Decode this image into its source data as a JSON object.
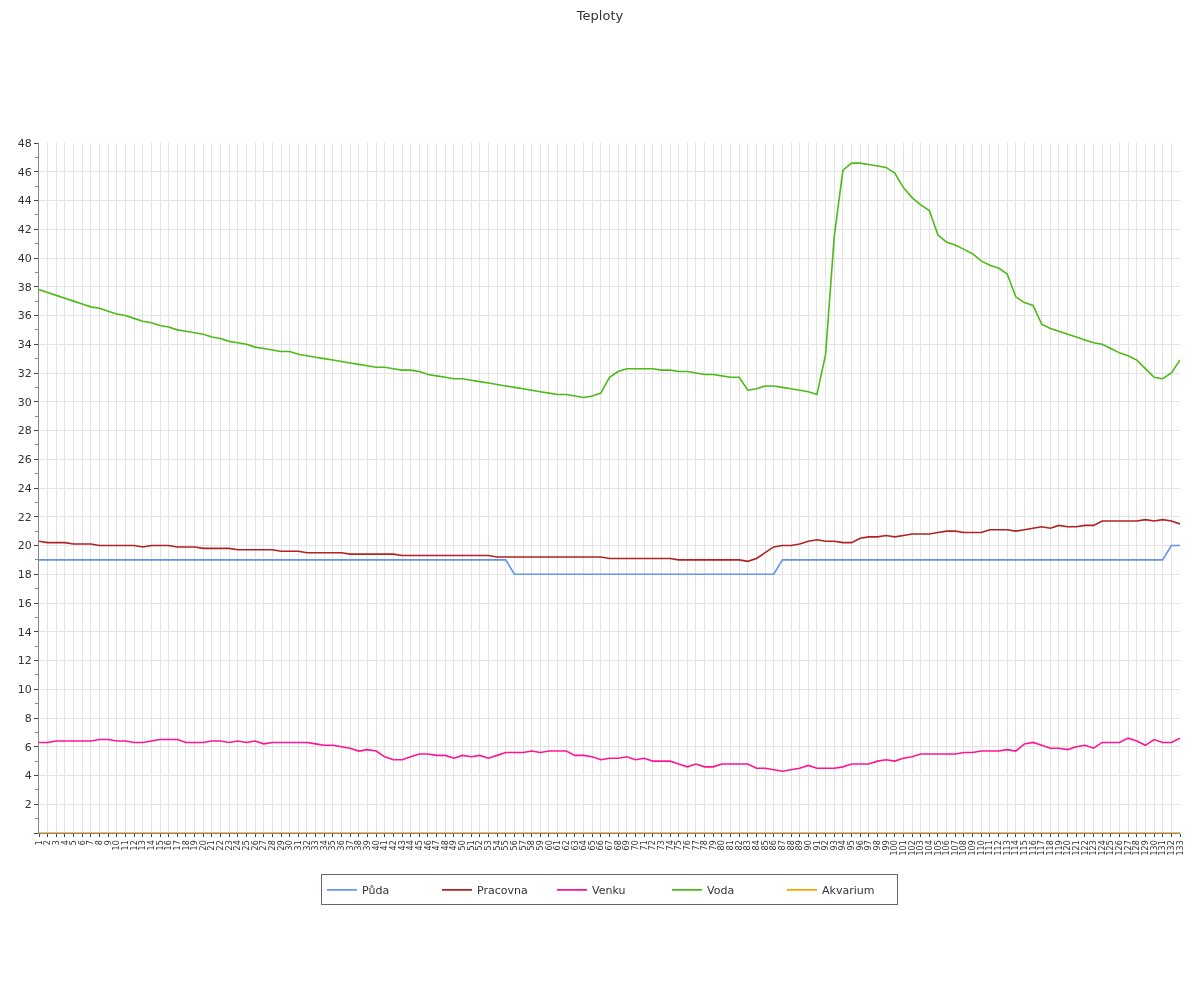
{
  "chart_data": {
    "type": "line",
    "title": "Teploty",
    "categories": [
      "1",
      "2",
      "3",
      "4",
      "5",
      "6",
      "7",
      "8",
      "9",
      "10",
      "11",
      "12",
      "13",
      "14",
      "15",
      "16",
      "17",
      "18",
      "19",
      "20",
      "21",
      "22",
      "23",
      "24",
      "25",
      "26",
      "27",
      "28",
      "29",
      "30",
      "31",
      "32",
      "33",
      "34",
      "35",
      "36",
      "37",
      "38",
      "39",
      "40",
      "41",
      "42",
      "43",
      "44",
      "45",
      "46",
      "47",
      "48",
      "49",
      "50",
      "51",
      "52",
      "53",
      "54",
      "55",
      "56",
      "57",
      "58",
      "59",
      "60",
      "61",
      "62",
      "63",
      "64",
      "65",
      "66",
      "67",
      "68",
      "69",
      "70",
      "71",
      "72",
      "73",
      "74",
      "75",
      "76",
      "77",
      "78",
      "79",
      "80",
      "81",
      "82",
      "83",
      "84",
      "85",
      "86",
      "87",
      "88",
      "89",
      "90",
      "91",
      "92",
      "93",
      "94",
      "95",
      "96",
      "97",
      "98",
      "99",
      "100",
      "101",
      "102",
      "103",
      "104",
      "105",
      "106",
      "107",
      "108",
      "109",
      "110",
      "111",
      "112",
      "113",
      "114",
      "115",
      "116",
      "117",
      "118",
      "119",
      "120",
      "121",
      "122",
      "123",
      "124",
      "125",
      "126",
      "127",
      "128",
      "129",
      "130",
      "131",
      "132",
      "133"
    ],
    "series": [
      {
        "name": "Půda",
        "color": "#6495ed",
        "values": [
          19,
          19,
          19,
          19,
          19,
          19,
          19,
          19,
          19,
          19,
          19,
          19,
          19,
          19,
          19,
          19,
          19,
          19,
          19,
          19,
          19,
          19,
          19,
          19,
          19,
          19,
          19,
          19,
          19,
          19,
          19,
          19,
          19,
          19,
          19,
          19,
          19,
          19,
          19,
          19,
          19,
          19,
          19,
          19,
          19,
          19,
          19,
          19,
          19,
          19,
          19,
          19,
          19,
          19,
          19,
          18,
          18,
          18,
          18,
          18,
          18,
          18,
          18,
          18,
          18,
          18,
          18,
          18,
          18,
          18,
          18,
          18,
          18,
          18,
          18,
          18,
          18,
          18,
          18,
          18,
          18,
          18,
          18,
          18,
          18,
          18,
          19,
          19,
          19,
          19,
          19,
          19,
          19,
          19,
          19,
          19,
          19,
          19,
          19,
          19,
          19,
          19,
          19,
          19,
          19,
          19,
          19,
          19,
          19,
          19,
          19,
          19,
          19,
          19,
          19,
          19,
          19,
          19,
          19,
          19,
          19,
          19,
          19,
          19,
          19,
          19,
          19,
          19,
          19,
          19,
          19,
          20,
          20
        ]
      },
      {
        "name": "Pracovna",
        "color": "#b22222",
        "values": [
          20.3,
          20.2,
          20.2,
          20.2,
          20.1,
          20.1,
          20.1,
          20.0,
          20.0,
          20.0,
          20.0,
          20.0,
          19.9,
          20.0,
          20.0,
          20.0,
          19.9,
          19.9,
          19.9,
          19.8,
          19.8,
          19.8,
          19.8,
          19.7,
          19.7,
          19.7,
          19.7,
          19.7,
          19.6,
          19.6,
          19.6,
          19.5,
          19.5,
          19.5,
          19.5,
          19.5,
          19.4,
          19.4,
          19.4,
          19.4,
          19.4,
          19.4,
          19.3,
          19.3,
          19.3,
          19.3,
          19.3,
          19.3,
          19.3,
          19.3,
          19.3,
          19.3,
          19.3,
          19.2,
          19.2,
          19.2,
          19.2,
          19.2,
          19.2,
          19.2,
          19.2,
          19.2,
          19.2,
          19.2,
          19.2,
          19.2,
          19.1,
          19.1,
          19.1,
          19.1,
          19.1,
          19.1,
          19.1,
          19.1,
          19.0,
          19.0,
          19.0,
          19.0,
          19.0,
          19.0,
          19.0,
          19.0,
          18.9,
          19.1,
          19.5,
          19.9,
          20.0,
          20.0,
          20.1,
          20.3,
          20.4,
          20.3,
          20.3,
          20.2,
          20.2,
          20.5,
          20.6,
          20.6,
          20.7,
          20.6,
          20.7,
          20.8,
          20.8,
          20.8,
          20.9,
          21.0,
          21.0,
          20.9,
          20.9,
          20.9,
          21.1,
          21.1,
          21.1,
          21.0,
          21.1,
          21.2,
          21.3,
          21.2,
          21.4,
          21.3,
          21.3,
          21.4,
          21.4,
          21.7,
          21.7,
          21.7,
          21.7,
          21.7,
          21.8,
          21.7,
          21.8,
          21.7,
          21.5
        ]
      },
      {
        "name": "Venku",
        "color": "#ff1493",
        "values": [
          6.3,
          6.3,
          6.4,
          6.4,
          6.4,
          6.4,
          6.4,
          6.5,
          6.5,
          6.4,
          6.4,
          6.3,
          6.3,
          6.4,
          6.5,
          6.5,
          6.5,
          6.3,
          6.3,
          6.3,
          6.4,
          6.4,
          6.3,
          6.4,
          6.3,
          6.4,
          6.2,
          6.3,
          6.3,
          6.3,
          6.3,
          6.3,
          6.2,
          6.1,
          6.1,
          6.0,
          5.9,
          5.7,
          5.8,
          5.7,
          5.3,
          5.1,
          5.1,
          5.3,
          5.5,
          5.5,
          5.4,
          5.4,
          5.2,
          5.4,
          5.3,
          5.4,
          5.2,
          5.4,
          5.6,
          5.6,
          5.6,
          5.7,
          5.6,
          5.7,
          5.7,
          5.7,
          5.4,
          5.4,
          5.3,
          5.1,
          5.2,
          5.2,
          5.3,
          5.1,
          5.2,
          5.0,
          5.0,
          5.0,
          4.8,
          4.6,
          4.8,
          4.6,
          4.6,
          4.8,
          4.8,
          4.8,
          4.8,
          4.5,
          4.5,
          4.4,
          4.3,
          4.4,
          4.5,
          4.7,
          4.5,
          4.5,
          4.5,
          4.6,
          4.8,
          4.8,
          4.8,
          5.0,
          5.1,
          5.0,
          5.2,
          5.3,
          5.5,
          5.5,
          5.5,
          5.5,
          5.5,
          5.6,
          5.6,
          5.7,
          5.7,
          5.7,
          5.8,
          5.7,
          6.2,
          6.3,
          6.1,
          5.9,
          5.9,
          5.8,
          6.0,
          6.1,
          5.9,
          6.3,
          6.3,
          6.3,
          6.6,
          6.4,
          6.1,
          6.5,
          6.3,
          6.3,
          6.6
        ]
      },
      {
        "name": "Voda",
        "color": "#4cbb17",
        "values": [
          37.8,
          37.6,
          37.4,
          37.2,
          37.0,
          36.8,
          36.6,
          36.5,
          36.3,
          36.1,
          36.0,
          35.8,
          35.6,
          35.5,
          35.3,
          35.2,
          35.0,
          34.9,
          34.8,
          34.7,
          34.5,
          34.4,
          34.2,
          34.1,
          34.0,
          33.8,
          33.7,
          33.6,
          33.5,
          33.5,
          33.3,
          33.2,
          33.1,
          33.0,
          32.9,
          32.8,
          32.7,
          32.6,
          32.5,
          32.4,
          32.4,
          32.3,
          32.2,
          32.2,
          32.1,
          31.9,
          31.8,
          31.7,
          31.6,
          31.6,
          31.5,
          31.4,
          31.3,
          31.2,
          31.1,
          31.0,
          30.9,
          30.8,
          30.7,
          30.6,
          30.5,
          30.5,
          30.4,
          30.3,
          30.4,
          30.6,
          31.7,
          32.1,
          32.3,
          32.3,
          32.3,
          32.3,
          32.2,
          32.2,
          32.1,
          32.1,
          32.0,
          31.9,
          31.9,
          31.8,
          31.7,
          31.7,
          30.8,
          30.9,
          31.1,
          31.1,
          31.0,
          30.9,
          30.8,
          30.7,
          30.5,
          33.3,
          41.5,
          46.1,
          46.6,
          46.6,
          46.5,
          46.4,
          46.3,
          45.9,
          44.9,
          44.2,
          43.7,
          43.3,
          41.6,
          41.1,
          40.9,
          40.6,
          40.3,
          39.8,
          39.5,
          39.3,
          38.9,
          37.3,
          36.9,
          36.7,
          35.4,
          35.1,
          34.9,
          34.7,
          34.5,
          34.3,
          34.1,
          34.0,
          33.7,
          33.4,
          33.2,
          32.9,
          32.3,
          31.7,
          31.6,
          32.0,
          32.9
        ]
      },
      {
        "name": "Akvarium",
        "color": "#ffa500",
        "values": [
          0,
          0,
          0,
          0,
          0,
          0,
          0,
          0,
          0,
          0,
          0,
          0,
          0,
          0,
          0,
          0,
          0,
          0,
          0,
          0,
          0,
          0,
          0,
          0,
          0,
          0,
          0,
          0,
          0,
          0,
          0,
          0,
          0,
          0,
          0,
          0,
          0,
          0,
          0,
          0,
          0,
          0,
          0,
          0,
          0,
          0,
          0,
          0,
          0,
          0,
          0,
          0,
          0,
          0,
          0,
          0,
          0,
          0,
          0,
          0,
          0,
          0,
          0,
          0,
          0,
          0,
          0,
          0,
          0,
          0,
          0,
          0,
          0,
          0,
          0,
          0,
          0,
          0,
          0,
          0,
          0,
          0,
          0,
          0,
          0,
          0,
          0,
          0,
          0,
          0,
          0,
          0,
          0,
          0,
          0,
          0,
          0,
          0,
          0,
          0,
          0,
          0,
          0,
          0,
          0,
          0,
          0,
          0,
          0,
          0,
          0,
          0,
          0,
          0,
          0,
          0,
          0,
          0,
          0,
          0,
          0,
          0,
          0,
          0,
          0,
          0,
          0,
          0,
          0,
          0,
          0,
          0,
          0
        ]
      }
    ],
    "ylim": [
      0,
      48
    ],
    "yticks": [
      {
        "value": 0,
        "label": null
      },
      2,
      4,
      6,
      8,
      10,
      12,
      14,
      16,
      18,
      20,
      22,
      24,
      26,
      28,
      30,
      32,
      34,
      36,
      38,
      40,
      42,
      44,
      46,
      48
    ],
    "grid": true,
    "legend": "bottom",
    "marker": "none",
    "line_style": "solid"
  }
}
